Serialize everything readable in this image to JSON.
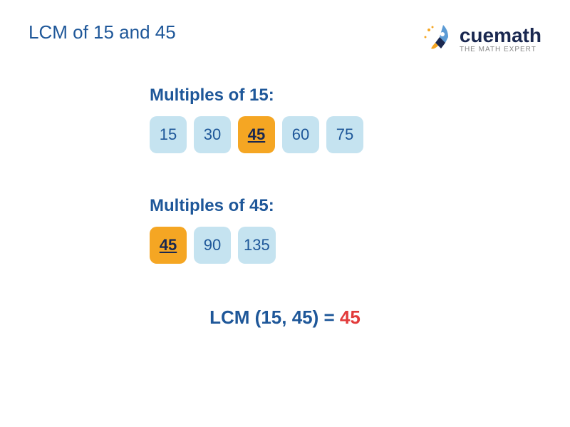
{
  "title": "LCM of 15 and 45",
  "logo": {
    "brand": "cuemath",
    "tagline": "THE MATH EXPERT"
  },
  "sections": {
    "first": {
      "label": "Multiples of 15:",
      "multiples": [
        {
          "value": "15",
          "highlighted": false
        },
        {
          "value": "30",
          "highlighted": false
        },
        {
          "value": "45",
          "highlighted": true
        },
        {
          "value": "60",
          "highlighted": false
        },
        {
          "value": "75",
          "highlighted": false
        }
      ]
    },
    "second": {
      "label": "Multiples of 45:",
      "multiples": [
        {
          "value": "45",
          "highlighted": true
        },
        {
          "value": "90",
          "highlighted": false
        },
        {
          "value": "135",
          "highlighted": false
        }
      ]
    }
  },
  "result": {
    "label": "LCM (15, 45) = ",
    "value": "45"
  },
  "colors": {
    "primary_text": "#1e5799",
    "dark_text": "#1a2850",
    "normal_box_bg": "#c5e3f0",
    "highlighted_box_bg": "#f5a623",
    "result_value": "#e23b3b",
    "background": "#ffffff"
  }
}
